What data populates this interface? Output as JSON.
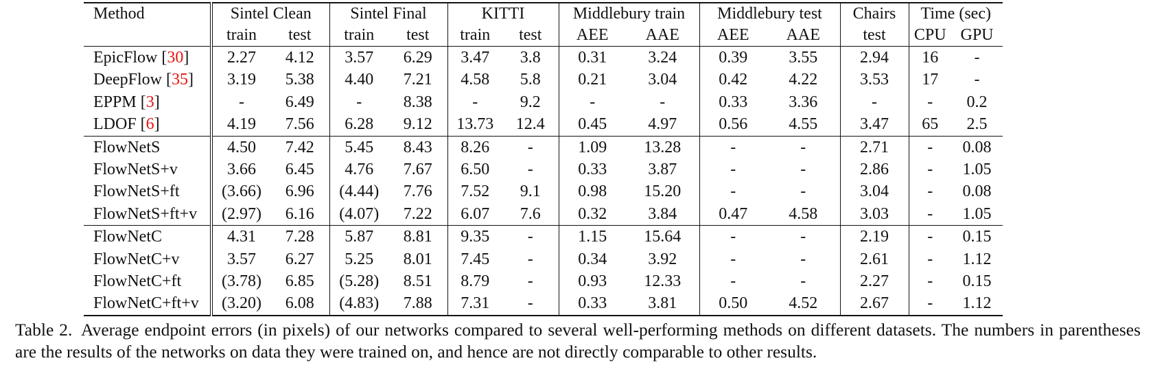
{
  "table": {
    "header": {
      "method": "Method",
      "groups": [
        "Sintel Clean",
        "Sintel Final",
        "KITTI",
        "Middlebury train",
        "Middlebury test",
        "Chairs",
        "Time (sec)"
      ],
      "subs": [
        "train",
        "test",
        "train",
        "test",
        "train",
        "test",
        "AEE",
        "AAE",
        "AEE",
        "AAE",
        "test",
        "CPU",
        "GPU"
      ]
    },
    "sections": [
      {
        "rows": [
          {
            "name": "EpicFlow",
            "cite": "30",
            "values": [
              "2.27",
              "4.12",
              "3.57",
              "6.29",
              "3.47",
              "3.8",
              "0.31",
              "3.24",
              "0.39",
              "3.55",
              "2.94",
              "16",
              "-"
            ]
          },
          {
            "name": "DeepFlow",
            "cite": "35",
            "values": [
              "3.19",
              "5.38",
              "4.40",
              "7.21",
              "4.58",
              "5.8",
              "0.21",
              "3.04",
              "0.42",
              "4.22",
              "3.53",
              "17",
              "-"
            ]
          },
          {
            "name": "EPPM",
            "cite": "3",
            "values": [
              "-",
              "6.49",
              "-",
              "8.38",
              "-",
              "9.2",
              "-",
              "-",
              "0.33",
              "3.36",
              "-",
              "-",
              "0.2"
            ]
          },
          {
            "name": "LDOF",
            "cite": "6",
            "values": [
              "4.19",
              "7.56",
              "6.28",
              "9.12",
              "13.73",
              "12.4",
              "0.45",
              "4.97",
              "0.56",
              "4.55",
              "3.47",
              "65",
              "2.5"
            ]
          }
        ]
      },
      {
        "rows": [
          {
            "name": "FlowNetS",
            "cite": "",
            "values": [
              "4.50",
              "7.42",
              "5.45",
              "8.43",
              "8.26",
              "-",
              "1.09",
              "13.28",
              "-",
              "-",
              "2.71",
              "-",
              "0.08"
            ]
          },
          {
            "name": "FlowNetS+v",
            "cite": "",
            "values": [
              "3.66",
              "6.45",
              "4.76",
              "7.67",
              "6.50",
              "-",
              "0.33",
              "3.87",
              "-",
              "-",
              "2.86",
              "-",
              "1.05"
            ]
          },
          {
            "name": "FlowNetS+ft",
            "cite": "",
            "values": [
              "(3.66)",
              "6.96",
              "(4.44)",
              "7.76",
              "7.52",
              "9.1",
              "0.98",
              "15.20",
              "-",
              "-",
              "3.04",
              "-",
              "0.08"
            ]
          },
          {
            "name": "FlowNetS+ft+v",
            "cite": "",
            "values": [
              "(2.97)",
              "6.16",
              "(4.07)",
              "7.22",
              "6.07",
              "7.6",
              "0.32",
              "3.84",
              "0.47",
              "4.58",
              "3.03",
              "-",
              "1.05"
            ]
          }
        ]
      },
      {
        "rows": [
          {
            "name": "FlowNetC",
            "cite": "",
            "values": [
              "4.31",
              "7.28",
              "5.87",
              "8.81",
              "9.35",
              "-",
              "1.15",
              "15.64",
              "-",
              "-",
              "2.19",
              "-",
              "0.15"
            ]
          },
          {
            "name": "FlowNetC+v",
            "cite": "",
            "values": [
              "3.57",
              "6.27",
              "5.25",
              "8.01",
              "7.45",
              "-",
              "0.34",
              "3.92",
              "-",
              "-",
              "2.61",
              "-",
              "1.12"
            ]
          },
          {
            "name": "FlowNetC+ft",
            "cite": "",
            "values": [
              "(3.78)",
              "6.85",
              "(5.28)",
              "8.51",
              "8.79",
              "-",
              "0.93",
              "12.33",
              "-",
              "-",
              "2.27",
              "-",
              "0.15"
            ]
          },
          {
            "name": "FlowNetC+ft+v",
            "cite": "",
            "values": [
              "(3.20)",
              "6.08",
              "(4.83)",
              "7.88",
              "7.31",
              "-",
              "0.33",
              "3.81",
              "0.50",
              "4.52",
              "2.67",
              "-",
              "1.12"
            ]
          }
        ]
      }
    ]
  },
  "caption": {
    "label": "Table 2.",
    "text": "Average endpoint errors (in pixels) of our networks compared to several well-performing methods on different datasets. The numbers in parentheses are the results of the networks on data they were trained on, and hence are not directly comparable to other results."
  }
}
